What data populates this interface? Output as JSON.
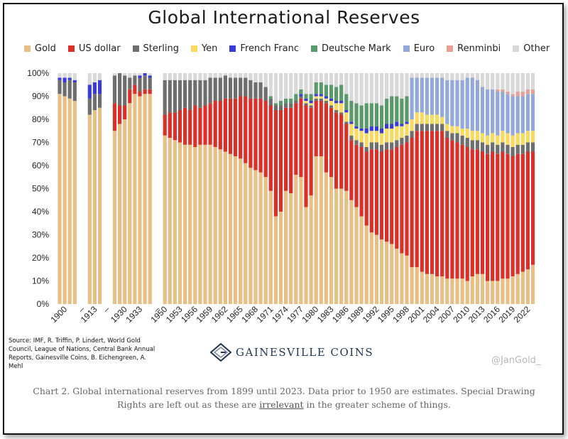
{
  "figure": {
    "caption_before_link": "Chart 2. Global international reserves from 1899 until 2023. Data prior to 1950 are estimates. Special Drawing Rights are left out as these are ",
    "caption_link": "irrelevant",
    "caption_after_link": " in the greater scheme of things.",
    "source_text": "Source: IMF, R. Triffin, P. Lindert, World Gold Council, League of Nations, Central Bank Annual Reports, Gainesville Coins, B. Eichengreen, A. Mehl",
    "brand_name": "GAINESVILLE COINS",
    "watermark": "@JanGold_"
  },
  "colors": {
    "Gold": "#e8c087",
    "US dollar": "#d9302a",
    "Sterling": "#6e6e6e",
    "Yen": "#f9d95e",
    "French Franc": "#3a3ad6",
    "Deutsche Mark": "#5a9a6a",
    "Euro": "#93a9dc",
    "Renminbi": "#e8a096",
    "Other": "#d9d9d9",
    "text": "#222222",
    "brand": "#1f3552"
  },
  "chart_data": {
    "type": "bar",
    "stacked": true,
    "title": "Global International Reserves",
    "xlabel": "",
    "ylabel": "",
    "ylim": [
      0,
      100
    ],
    "yticks": [
      "0%",
      "10%",
      "20%",
      "30%",
      "40%",
      "50%",
      "60%",
      "70%",
      "80%",
      "90%",
      "100%"
    ],
    "legend": [
      "Gold",
      "US dollar",
      "Sterling",
      "Yen",
      "French Franc",
      "Deutsche Mark",
      "Euro",
      "Renminbi",
      "Other"
    ],
    "legend_position": "top",
    "xtick_labels": [
      "1900",
      "–",
      "1913",
      "–",
      "1930",
      "1933",
      "–",
      "1950",
      "1953",
      "1956",
      "1959",
      "1962",
      "1965",
      "1968",
      "1971",
      "1974",
      "1977",
      "1980",
      "1983",
      "1986",
      "1989",
      "1992",
      "1995",
      "1998",
      "2001",
      "2004",
      "2007",
      "2010",
      "2013",
      "2016",
      "2019",
      "2022"
    ],
    "categories": [
      "1899",
      "1900",
      "1901",
      "1902",
      "1912",
      "1913",
      "1914",
      "1928",
      "1929",
      "1930",
      "1931",
      "1932",
      "1933",
      "1934",
      "1935",
      "1950",
      "1951",
      "1952",
      "1953",
      "1954",
      "1955",
      "1956",
      "1957",
      "1958",
      "1959",
      "1960",
      "1961",
      "1962",
      "1963",
      "1964",
      "1965",
      "1966",
      "1967",
      "1968",
      "1969",
      "1970",
      "1971",
      "1972",
      "1973",
      "1974",
      "1975",
      "1976",
      "1977",
      "1978",
      "1979",
      "1980",
      "1981",
      "1982",
      "1983",
      "1984",
      "1985",
      "1986",
      "1987",
      "1988",
      "1989",
      "1990",
      "1991",
      "1992",
      "1993",
      "1994",
      "1995",
      "1996",
      "1997",
      "1998",
      "1999",
      "2000",
      "2001",
      "2002",
      "2003",
      "2004",
      "2005",
      "2006",
      "2007",
      "2008",
      "2009",
      "2010",
      "2011",
      "2012",
      "2013",
      "2014",
      "2015",
      "2016",
      "2017",
      "2018",
      "2019",
      "2020",
      "2021",
      "2022",
      "2023"
    ],
    "series": [
      {
        "name": "Gold",
        "values": [
          91,
          90,
          89,
          88,
          82,
          84,
          85,
          75,
          78,
          80,
          87,
          91,
          90,
          91,
          91,
          73,
          72,
          71,
          70,
          69,
          69,
          68,
          69,
          69,
          69,
          68,
          67,
          66,
          65,
          64,
          63,
          61,
          59,
          58,
          57,
          55,
          49,
          38,
          40,
          49,
          48,
          56,
          55,
          42,
          47,
          64,
          64,
          57,
          55,
          50,
          50,
          49,
          45,
          42,
          38,
          34,
          31,
          30,
          28,
          27,
          26,
          24,
          22,
          21,
          16,
          16,
          14,
          13,
          13,
          12,
          12,
          11,
          11,
          11,
          11,
          10,
          12,
          13,
          13,
          10,
          10,
          10,
          11,
          11,
          12,
          13,
          14,
          15,
          17
        ]
      },
      {
        "name": "US dollar",
        "values": [
          0,
          0,
          0,
          0,
          0,
          0,
          0,
          12,
          8,
          6,
          6,
          4,
          2,
          2,
          2,
          9,
          11,
          12,
          14,
          16,
          15,
          18,
          16,
          17,
          18,
          20,
          21,
          23,
          24,
          25,
          27,
          29,
          30,
          31,
          32,
          33,
          37,
          46,
          44,
          36,
          37,
          31,
          34,
          44,
          38,
          24,
          24,
          30,
          30,
          33,
          32,
          29,
          26,
          27,
          30,
          32,
          36,
          37,
          38,
          40,
          41,
          44,
          47,
          49,
          56,
          59,
          61,
          62,
          62,
          63,
          63,
          61,
          60,
          59,
          58,
          58,
          55,
          54,
          53,
          55,
          56,
          55,
          55,
          54,
          52,
          52,
          51,
          51,
          49
        ]
      },
      {
        "name": "Sterling",
        "values": [
          6,
          6,
          8,
          8,
          7,
          7,
          6,
          12,
          14,
          13,
          5,
          4,
          6,
          6,
          5,
          15,
          14,
          14,
          13,
          12,
          13,
          11,
          12,
          11,
          11,
          10,
          10,
          10,
          9,
          9,
          8,
          8,
          8,
          7,
          7,
          6,
          3,
          2,
          2,
          2,
          2,
          1,
          1,
          1,
          1,
          1,
          1,
          1,
          1,
          1,
          1,
          1,
          2,
          2,
          2,
          2,
          3,
          3,
          3,
          3,
          3,
          3,
          3,
          3,
          3,
          3,
          3,
          3,
          3,
          3,
          3,
          3,
          3,
          4,
          4,
          4,
          4,
          4,
          4,
          4,
          4,
          4,
          4,
          4,
          4,
          4,
          4,
          4,
          4
        ]
      },
      {
        "name": "Yen",
        "values": [
          0,
          0,
          0,
          0,
          0,
          0,
          0,
          0,
          0,
          0,
          0,
          0,
          0,
          0,
          0,
          0,
          0,
          0,
          0,
          0,
          0,
          0,
          0,
          0,
          0,
          0,
          0,
          0,
          0,
          0,
          0,
          0,
          0,
          0,
          0,
          0,
          0,
          0,
          0,
          0,
          0,
          0,
          0,
          1,
          1,
          1,
          1,
          1,
          2,
          3,
          4,
          4,
          5,
          5,
          5,
          6,
          5,
          5,
          5,
          6,
          6,
          6,
          5,
          5,
          5,
          5,
          5,
          4,
          4,
          4,
          3,
          3,
          3,
          3,
          3,
          4,
          4,
          4,
          4,
          4,
          4,
          4,
          5,
          5,
          5,
          5,
          5,
          5,
          5
        ]
      },
      {
        "name": "French Franc",
        "values": [
          1,
          2,
          1,
          1,
          6,
          5,
          6,
          0,
          0,
          0,
          0,
          0,
          1,
          1,
          1,
          0,
          0,
          0,
          0,
          0,
          0,
          0,
          0,
          0,
          0,
          0,
          0,
          0,
          0,
          0,
          0,
          0,
          0,
          0,
          0,
          0,
          0,
          0,
          0,
          0,
          0,
          0,
          1,
          1,
          1,
          1,
          1,
          1,
          1,
          1,
          1,
          1,
          1,
          1,
          1,
          2,
          2,
          2,
          2,
          2,
          2,
          2,
          1,
          1,
          0,
          0,
          0,
          0,
          0,
          0,
          0,
          0,
          0,
          0,
          0,
          0,
          0,
          0,
          0,
          0,
          0,
          0,
          0,
          0,
          0,
          0,
          0,
          0,
          0
        ]
      },
      {
        "name": "Deutsche Mark",
        "values": [
          0,
          0,
          0,
          0,
          0,
          0,
          0,
          0,
          0,
          0,
          0,
          0,
          0,
          0,
          0,
          0,
          0,
          0,
          0,
          0,
          0,
          0,
          0,
          0,
          0,
          0,
          0,
          0,
          0,
          0,
          0,
          0,
          0,
          0,
          0,
          0,
          1,
          1,
          2,
          2,
          2,
          3,
          2,
          2,
          3,
          5,
          5,
          5,
          6,
          6,
          7,
          7,
          9,
          10,
          10,
          11,
          10,
          10,
          10,
          11,
          12,
          11,
          11,
          11,
          0,
          0,
          0,
          0,
          0,
          0,
          0,
          0,
          0,
          0,
          0,
          0,
          0,
          0,
          0,
          0,
          0,
          0,
          0,
          0,
          0,
          0,
          0,
          0,
          0
        ]
      },
      {
        "name": "Euro",
        "values": [
          0,
          0,
          0,
          0,
          0,
          0,
          0,
          0,
          0,
          0,
          0,
          0,
          0,
          0,
          0,
          0,
          0,
          0,
          0,
          0,
          0,
          0,
          0,
          0,
          0,
          0,
          0,
          0,
          0,
          0,
          0,
          0,
          0,
          0,
          0,
          0,
          0,
          0,
          0,
          0,
          0,
          0,
          0,
          0,
          0,
          0,
          0,
          0,
          0,
          0,
          0,
          0,
          0,
          0,
          0,
          0,
          0,
          0,
          0,
          0,
          0,
          0,
          0,
          0,
          18,
          15,
          15,
          16,
          16,
          16,
          17,
          19,
          20,
          20,
          21,
          22,
          23,
          22,
          20,
          20,
          19,
          19,
          17,
          17,
          17,
          16,
          16,
          16,
          16
        ]
      },
      {
        "name": "Renminbi",
        "values": [
          0,
          0,
          0,
          0,
          0,
          0,
          0,
          0,
          0,
          0,
          0,
          0,
          0,
          0,
          0,
          0,
          0,
          0,
          0,
          0,
          0,
          0,
          0,
          0,
          0,
          0,
          0,
          0,
          0,
          0,
          0,
          0,
          0,
          0,
          0,
          0,
          0,
          0,
          0,
          0,
          0,
          0,
          0,
          0,
          0,
          0,
          0,
          0,
          0,
          0,
          0,
          0,
          0,
          0,
          0,
          0,
          0,
          0,
          0,
          0,
          0,
          0,
          0,
          0,
          0,
          0,
          0,
          0,
          0,
          0,
          0,
          0,
          0,
          0,
          0,
          0,
          0,
          0,
          0,
          0,
          0,
          1,
          1,
          1,
          1,
          2,
          2,
          2,
          2
        ]
      },
      {
        "name": "Other",
        "values": [
          2,
          2,
          2,
          3,
          5,
          4,
          3,
          1,
          0,
          1,
          2,
          1,
          1,
          0,
          1,
          3,
          3,
          3,
          3,
          3,
          3,
          3,
          3,
          3,
          2,
          2,
          2,
          1,
          2,
          2,
          2,
          2,
          3,
          4,
          4,
          6,
          10,
          13,
          12,
          11,
          11,
          9,
          7,
          9,
          9,
          4,
          4,
          5,
          5,
          6,
          5,
          9,
          12,
          13,
          14,
          13,
          13,
          13,
          14,
          11,
          10,
          10,
          11,
          10,
          2,
          2,
          2,
          2,
          2,
          2,
          2,
          3,
          3,
          3,
          3,
          2,
          2,
          3,
          6,
          7,
          7,
          7,
          7,
          8,
          9,
          8,
          8,
          7,
          7
        ]
      }
    ]
  }
}
